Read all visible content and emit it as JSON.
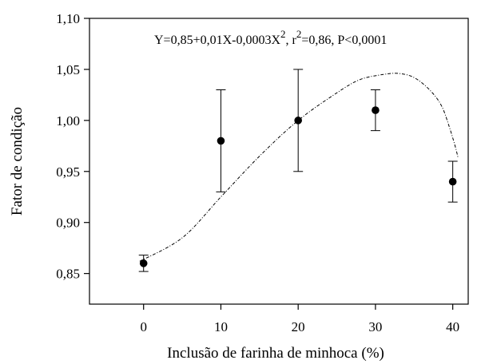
{
  "chart_data": {
    "type": "scatter",
    "xlabel": "Inclusão de farinha de minhoca (%)",
    "ylabel": "Fator de condição",
    "xlim": [
      -7,
      42
    ],
    "ylim": [
      0.82,
      1.1
    ],
    "xticks": [
      0,
      10,
      20,
      30,
      40
    ],
    "xtick_labels": [
      "0",
      "10",
      "20",
      "30",
      "40"
    ],
    "yticks": [
      0.85,
      0.9,
      0.95,
      1.0,
      1.05,
      1.1
    ],
    "ytick_labels": [
      "0,85",
      "0,90",
      "0,95",
      "1,00",
      "1,05",
      "1,10"
    ],
    "grid": false,
    "points": [
      {
        "x": 0,
        "y": 0.86,
        "err_low": 0.852,
        "err_high": 0.868
      },
      {
        "x": 10,
        "y": 0.98,
        "err_low": 0.93,
        "err_high": 1.03
      },
      {
        "x": 20,
        "y": 1.0,
        "err_low": 0.95,
        "err_high": 1.05
      },
      {
        "x": 30,
        "y": 1.01,
        "err_low": 0.99,
        "err_high": 1.03
      },
      {
        "x": 40,
        "y": 0.94,
        "err_low": 0.92,
        "err_high": 0.96
      }
    ],
    "fit_curve": [
      {
        "x": -0.5,
        "y": 0.862
      },
      {
        "x": 5,
        "y": 0.885
      },
      {
        "x": 10,
        "y": 0.925
      },
      {
        "x": 15,
        "y": 0.965
      },
      {
        "x": 20,
        "y": 1.0
      },
      {
        "x": 25,
        "y": 1.027
      },
      {
        "x": 28,
        "y": 1.04
      },
      {
        "x": 31,
        "y": 1.045
      },
      {
        "x": 33,
        "y": 1.046
      },
      {
        "x": 35,
        "y": 1.042
      },
      {
        "x": 37,
        "y": 1.03
      },
      {
        "x": 38.5,
        "y": 1.015
      },
      {
        "x": 39.5,
        "y": 0.995
      },
      {
        "x": 40.3,
        "y": 0.975
      },
      {
        "x": 40.7,
        "y": 0.963
      }
    ],
    "annotation": {
      "lead": "Y=0,85+0,01X-0,0003X",
      "sup1": "2",
      "mid": ", r",
      "sup2": "2",
      "tail": "=0,86, P<0,0001"
    }
  }
}
